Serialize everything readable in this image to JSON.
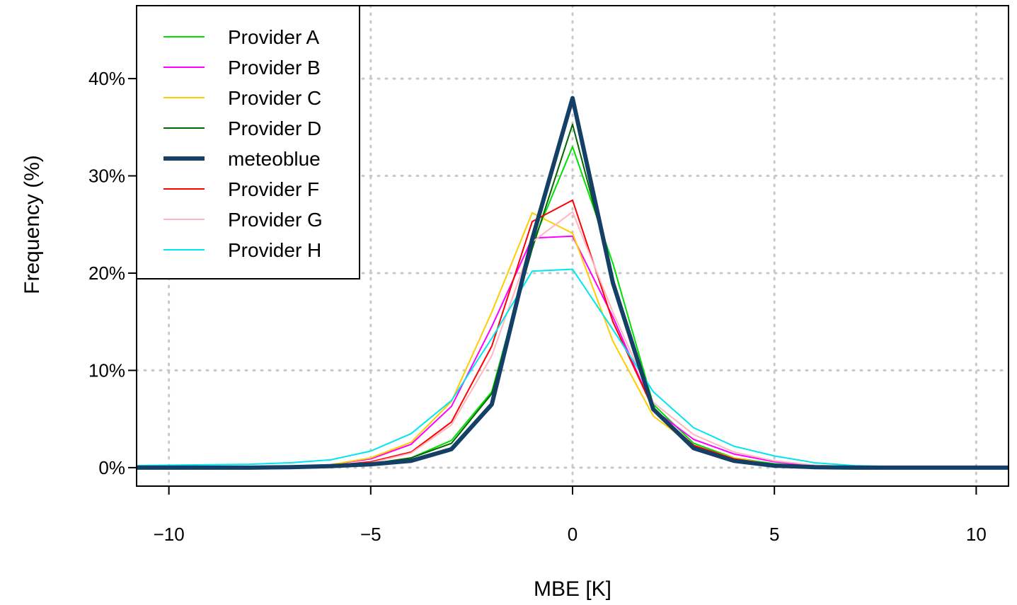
{
  "chart_data": {
    "type": "line",
    "title": "",
    "xlabel": "MBE [K]",
    "ylabel": "Frequency (%)",
    "xlim": [
      -10.8,
      10.8
    ],
    "ylim": [
      -1.9,
      47.5
    ],
    "x_ticks": [
      -10,
      -5,
      0,
      5,
      10
    ],
    "x_tick_labels": [
      "−10",
      "−5",
      "0",
      "5",
      "10"
    ],
    "y_ticks": [
      0,
      10,
      20,
      30,
      40
    ],
    "y_tick_labels": [
      "0%",
      "10%",
      "20%",
      "30%",
      "40%"
    ],
    "grid": true,
    "legend_position": "top-left",
    "x": [
      -11,
      -10,
      -9,
      -8,
      -7,
      -6,
      -5,
      -4,
      -3,
      -2,
      -1,
      0,
      1,
      2,
      3,
      4,
      5,
      6,
      7,
      8,
      9,
      10,
      11
    ],
    "series": [
      {
        "name": "Provider A",
        "color": "#00e000",
        "width": 2,
        "values": [
          0,
          0,
          0,
          0,
          0.05,
          0.15,
          0.4,
          1.0,
          2.8,
          7.8,
          23.0,
          33.0,
          21.0,
          6.5,
          2.5,
          1.0,
          0.4,
          0.15,
          0.05,
          0,
          0,
          0,
          0
        ]
      },
      {
        "name": "Provider B",
        "color": "#ff00ff",
        "width": 2,
        "values": [
          0,
          0,
          0,
          0,
          0.1,
          0.3,
          0.9,
          2.4,
          6.3,
          14.5,
          23.6,
          23.8,
          15.5,
          6.0,
          2.9,
          1.4,
          0.6,
          0.2,
          0.05,
          0,
          0,
          0,
          0
        ]
      },
      {
        "name": "Provider C",
        "color": "#ffcc00",
        "width": 2,
        "values": [
          0,
          0,
          0,
          0,
          0.1,
          0.3,
          1.0,
          2.6,
          6.8,
          16.0,
          26.2,
          24.1,
          13.0,
          5.3,
          2.2,
          1.0,
          0.3,
          0.1,
          0,
          0,
          0,
          0,
          0
        ]
      },
      {
        "name": "Provider D",
        "color": "#006600",
        "width": 2,
        "values": [
          0,
          0,
          0,
          0,
          0.05,
          0.15,
          0.4,
          1.0,
          2.5,
          7.6,
          22.5,
          35.3,
          19.5,
          6.2,
          2.1,
          0.8,
          0.3,
          0.1,
          0,
          0,
          0,
          0,
          0
        ]
      },
      {
        "name": "meteoblue",
        "color": "#143f66",
        "width": 6,
        "values": [
          0,
          0,
          0,
          0,
          0.05,
          0.15,
          0.35,
          0.7,
          1.9,
          6.5,
          23.5,
          38.0,
          19.0,
          6.0,
          2.0,
          0.7,
          0.2,
          0.05,
          0,
          0,
          0,
          0,
          0
        ]
      },
      {
        "name": "Provider F",
        "color": "#ff0000",
        "width": 2,
        "values": [
          0,
          0,
          0,
          0,
          0.05,
          0.2,
          0.6,
          1.6,
          4.7,
          12.5,
          25.3,
          27.5,
          15.0,
          6.0,
          2.3,
          0.9,
          0.3,
          0.1,
          0,
          0,
          0,
          0,
          0
        ]
      },
      {
        "name": "Provider G",
        "color": "#ffb6c1",
        "width": 2,
        "values": [
          0,
          0,
          0,
          0,
          0.05,
          0.2,
          0.5,
          1.5,
          4.4,
          11.5,
          23.2,
          26.3,
          16.0,
          6.7,
          3.4,
          1.6,
          0.7,
          0.25,
          0.05,
          0,
          0,
          0,
          0
        ]
      },
      {
        "name": "Provider H",
        "color": "#00e5ee",
        "width": 2,
        "values": [
          0.2,
          0.25,
          0.3,
          0.35,
          0.5,
          0.8,
          1.7,
          3.5,
          6.9,
          13.3,
          20.2,
          20.4,
          14.2,
          7.8,
          4.1,
          2.2,
          1.2,
          0.5,
          0.2,
          0.1,
          0.05,
          0.05,
          0.05
        ]
      }
    ]
  }
}
